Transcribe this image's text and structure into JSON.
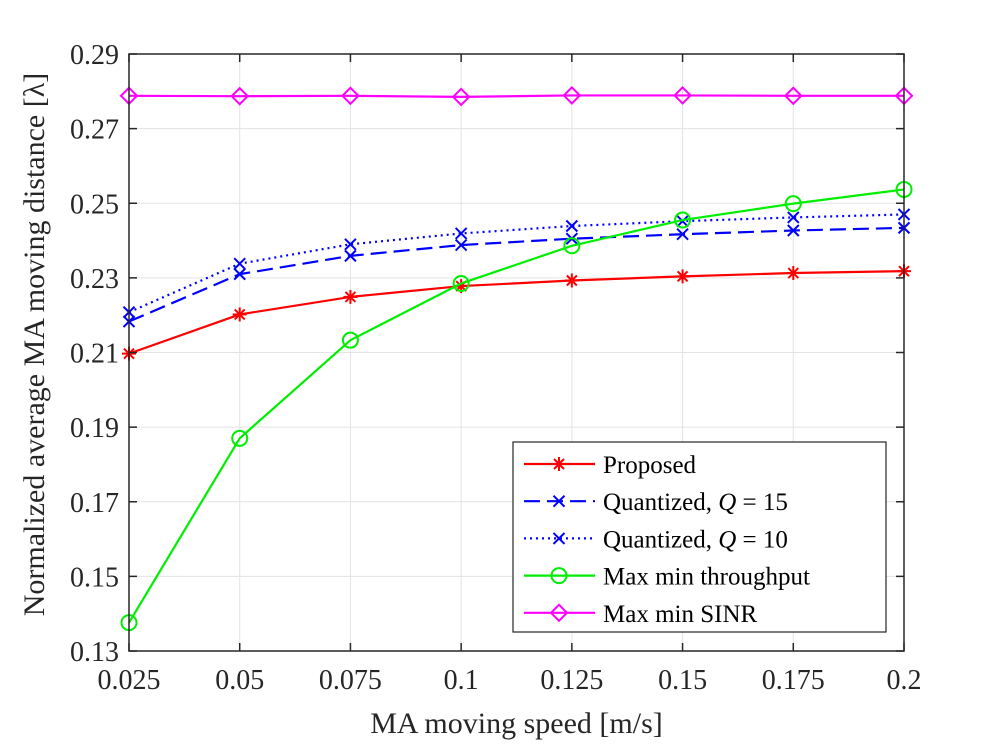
{
  "chart_data": {
    "type": "line",
    "title": "",
    "xlabel": "MA moving speed [m/s]",
    "ylabel": "Normalized average MA moving distance [λ]",
    "x": [
      0.025,
      0.05,
      0.075,
      0.1,
      0.125,
      0.15,
      0.175,
      0.2
    ],
    "x_tick_labels": [
      "0.025",
      "0.05",
      "0.075",
      "0.1",
      "0.125",
      "0.15",
      "0.175",
      "0.2"
    ],
    "xlim": [
      0.025,
      0.2
    ],
    "ylim": [
      0.13,
      0.29
    ],
    "y_ticks": [
      0.13,
      0.15,
      0.17,
      0.19,
      0.21,
      0.23,
      0.25,
      0.27,
      0.29
    ],
    "y_tick_labels": [
      "0.13",
      "0.15",
      "0.17",
      "0.19",
      "0.21",
      "0.23",
      "0.25",
      "0.27",
      "0.29"
    ],
    "grid": true,
    "legend_position": "bottom-right",
    "series": [
      {
        "name": "Proposed",
        "color": "#ff0000",
        "dash": "solid",
        "marker": "asterisk",
        "values": [
          0.2097,
          0.2202,
          0.2249,
          0.2278,
          0.2293,
          0.2304,
          0.2313,
          0.2318
        ]
      },
      {
        "name": "Quantized, Q = 15",
        "label_prefix": "Quantized, ",
        "label_var": "Q",
        "label_rest": " = 15",
        "color": "#0000ff",
        "dash": "dashed",
        "marker": "x",
        "values": [
          0.2183,
          0.231,
          0.2359,
          0.2388,
          0.2405,
          0.2417,
          0.2427,
          0.2434
        ]
      },
      {
        "name": "Quantized, Q = 10",
        "label_prefix": "Quantized, ",
        "label_var": "Q",
        "label_rest": " = 10",
        "color": "#0000ff",
        "dash": "dotted",
        "marker": "x",
        "values": [
          0.2208,
          0.2338,
          0.239,
          0.2419,
          0.2439,
          0.2452,
          0.2462,
          0.247
        ]
      },
      {
        "name": "Max min throughput",
        "color": "#00ee00",
        "dash": "solid",
        "marker": "circle",
        "values": [
          0.1376,
          0.187,
          0.2133,
          0.2285,
          0.2386,
          0.2455,
          0.2499,
          0.2537
        ]
      },
      {
        "name": "Max min SINR",
        "color": "#ff00ff",
        "dash": "solid",
        "marker": "diamond",
        "values": [
          0.2788,
          0.2787,
          0.2788,
          0.2785,
          0.2789,
          0.2789,
          0.2788,
          0.2788
        ]
      }
    ]
  }
}
